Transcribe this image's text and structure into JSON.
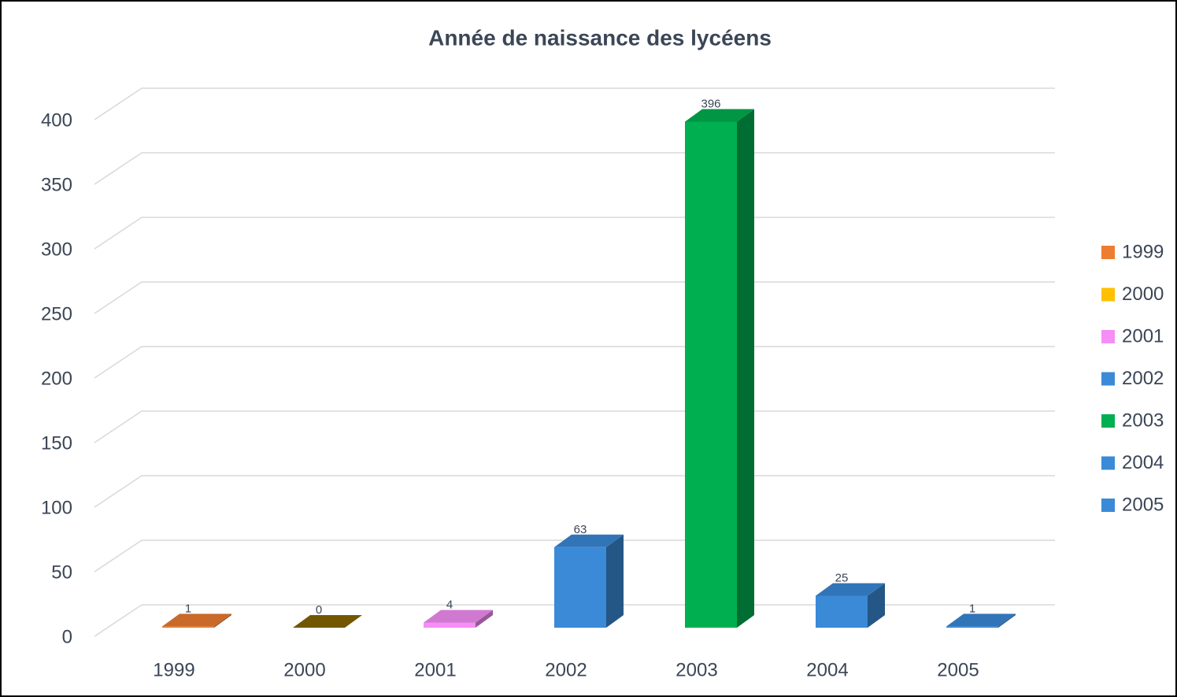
{
  "chart_data": {
    "type": "bar3d",
    "title": "Année de naissance des lycéens",
    "categories": [
      "1999",
      "2000",
      "2001",
      "2002",
      "2003",
      "2004",
      "2005"
    ],
    "values": [
      1,
      0,
      4,
      63,
      396,
      25,
      1
    ],
    "colors": [
      "#ed7d31",
      "#ffc000",
      "#f58ef5",
      "#3a8ad8",
      "#00b050",
      "#3a8ad8",
      "#3a8ad8"
    ],
    "ylim": [
      0,
      400
    ],
    "yticks": [
      0,
      50,
      100,
      150,
      200,
      250,
      300,
      350,
      400
    ],
    "grid": true,
    "legend": "right",
    "data_labels": true
  }
}
